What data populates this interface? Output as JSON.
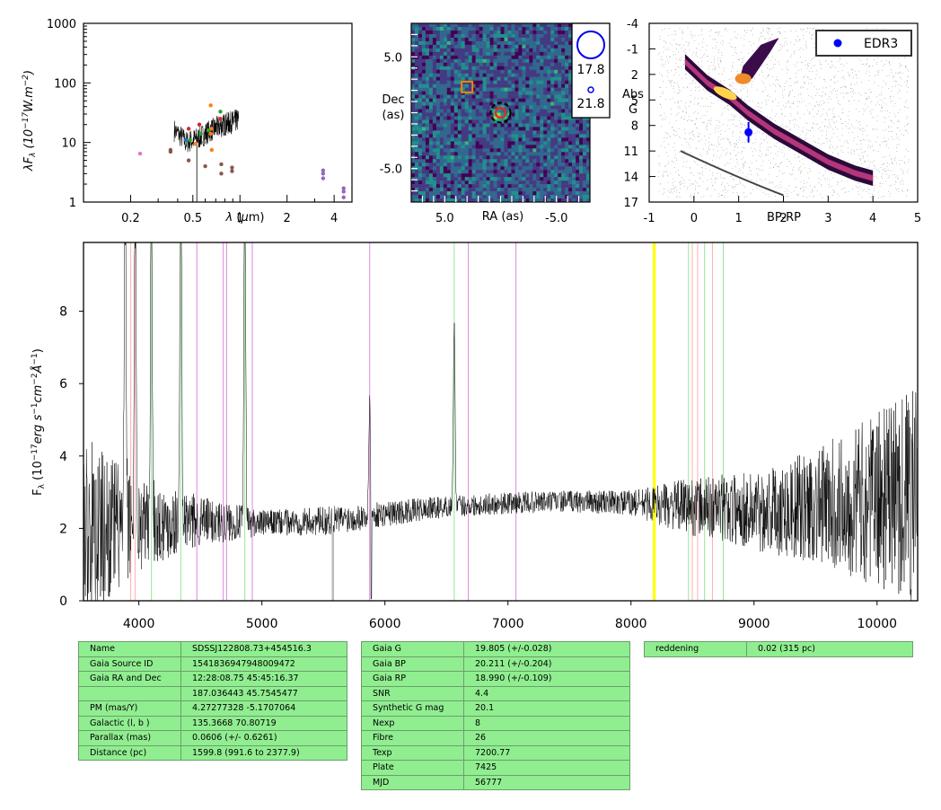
{
  "colors": {
    "spectrum": "#000000",
    "table_bg": "#90ee90",
    "line_red": "#ffb0b0",
    "line_green": "#99e699",
    "line_violet": "#dd88dd",
    "line_yellow": "#ffff00",
    "gaia_dot": "#0000ff",
    "marker_orange": "#ee8800"
  },
  "chart_data": [
    {
      "type": "scatter",
      "panel": "sed",
      "ylabel": "λF_λ (10⁻¹⁷W.m⁻²)",
      "xlabel": "λ (μm)",
      "xscale": "log",
      "yscale": "log",
      "xlim": [
        0.1,
        5.2
      ],
      "ylim": [
        1,
        1000
      ],
      "xticks": [
        "0.2",
        "0.5",
        "1",
        "2",
        "4"
      ],
      "x_tick_values": [
        0.2,
        0.5,
        1,
        2,
        4
      ],
      "yticks": [
        "1",
        "10",
        "100",
        "1000"
      ],
      "y_tick_values": [
        1,
        10,
        100,
        1000
      ],
      "points": [
        {
          "x": 0.23,
          "y": 6.5,
          "color": "#e377c2"
        },
        {
          "x": 0.36,
          "y": 7.5,
          "color": "#8c564b"
        },
        {
          "x": 0.36,
          "y": 7.0,
          "color": "#8c564b"
        },
        {
          "x": 0.45,
          "y": 11,
          "color": "#1f77b4"
        },
        {
          "x": 0.47,
          "y": 17,
          "color": "#d62728"
        },
        {
          "x": 0.47,
          "y": 5,
          "color": "#8c564b"
        },
        {
          "x": 0.48,
          "y": 11,
          "color": "#2ca02c"
        },
        {
          "x": 0.52,
          "y": 9.5,
          "color": "#ff7f0e"
        },
        {
          "x": 0.55,
          "y": 20,
          "color": "#d62728"
        },
        {
          "x": 0.56,
          "y": 14,
          "color": "#2ca02c"
        },
        {
          "x": 0.59,
          "y": 10,
          "color": "#7f7f7f"
        },
        {
          "x": 0.6,
          "y": 4,
          "color": "#8c564b"
        },
        {
          "x": 0.63,
          "y": 16,
          "color": "#2ca02c"
        },
        {
          "x": 0.65,
          "y": 42,
          "color": "#ff7f0e"
        },
        {
          "x": 0.65,
          "y": 14,
          "color": "#ff7f0e"
        },
        {
          "x": 0.66,
          "y": 17,
          "color": "#ff7f0e"
        },
        {
          "x": 0.66,
          "y": 7.5,
          "color": "#ff7f0e"
        },
        {
          "x": 0.75,
          "y": 33,
          "color": "#2ca02c"
        },
        {
          "x": 0.75,
          "y": 25,
          "color": "#d62728"
        },
        {
          "x": 0.76,
          "y": 4.3,
          "color": "#8c564b"
        },
        {
          "x": 0.76,
          "y": 3.0,
          "color": "#8c564b"
        },
        {
          "x": 0.89,
          "y": 3.8,
          "color": "#8c564b"
        },
        {
          "x": 0.89,
          "y": 3.3,
          "color": "#8c564b"
        },
        {
          "x": 3.4,
          "y": 3.4,
          "color": "#9467bd"
        },
        {
          "x": 3.4,
          "y": 3.0,
          "color": "#9467bd"
        },
        {
          "x": 3.4,
          "y": 2.5,
          "color": "#9467bd"
        },
        {
          "x": 4.6,
          "y": 1.7,
          "color": "#9467bd"
        },
        {
          "x": 4.6,
          "y": 1.5,
          "color": "#9467bd"
        },
        {
          "x": 4.6,
          "y": 1.2,
          "color": "#9467bd"
        }
      ]
    },
    {
      "type": "heatmap",
      "panel": "cutout",
      "xlabel": "RA (as)",
      "ylabel": "Dec\n(as)",
      "xlim": [
        8,
        -8
      ],
      "ylim": [
        -8,
        8
      ],
      "xticks": [
        "5.0",
        "-5.0"
      ],
      "x_tick_values": [
        5,
        -5
      ],
      "yticks": [
        "5.0",
        "-5.0"
      ],
      "y_tick_values": [
        5,
        -5
      ],
      "markers": [
        {
          "kind": "square",
          "ra": 3.0,
          "dec": 2.3,
          "color": "#ee8800"
        },
        {
          "kind": "dashed-circle",
          "ra": 0,
          "dec": 0,
          "color": "#000000"
        },
        {
          "kind": "circle",
          "ra": 0,
          "dec": 0,
          "color": "#ee2222"
        }
      ],
      "legend": {
        "placement": "right",
        "entries": [
          "17.8",
          "21.8"
        ]
      }
    },
    {
      "type": "scatter",
      "panel": "cmd",
      "xlabel": "BP-RP",
      "ylabel": "Abs\nG",
      "xlim": [
        -1,
        5
      ],
      "ylim": [
        17,
        -4
      ],
      "xticks": [
        "-1",
        "0",
        "1",
        "2",
        "3",
        "4",
        "5"
      ],
      "x_tick_values": [
        -1,
        0,
        1,
        2,
        3,
        4,
        5
      ],
      "yticks": [
        "-4",
        "-1",
        "2",
        "5",
        "8",
        "11",
        "14",
        "17"
      ],
      "y_tick_values": [
        -4,
        -1,
        2,
        5,
        8,
        11,
        14,
        17
      ],
      "legend": {
        "placement": "top-right",
        "entries": [
          "EDR3"
        ]
      },
      "target": {
        "name": "EDR3",
        "x": 1.22,
        "y": 8.8,
        "yerr": 1.2
      }
    },
    {
      "type": "line",
      "panel": "spectrum",
      "ylabel": "F_λ (10⁻¹⁷erg s⁻¹cm⁻²Å⁻¹)",
      "xlim": [
        3550,
        10330
      ],
      "ylim": [
        0,
        9.9
      ],
      "xticks": [
        "4000",
        "5000",
        "6000",
        "7000",
        "8000",
        "9000",
        "10000"
      ],
      "x_tick_values": [
        4000,
        5000,
        6000,
        7000,
        8000,
        9000,
        10000
      ],
      "yticks": [
        "0",
        "2",
        "4",
        "6",
        "8"
      ],
      "y_tick_values": [
        0,
        2,
        4,
        6,
        8
      ],
      "continuum": [
        [
          3600,
          2.0
        ],
        [
          4000,
          2.1
        ],
        [
          4500,
          2.2
        ],
        [
          5000,
          2.15
        ],
        [
          5500,
          2.2
        ],
        [
          6000,
          2.4
        ],
        [
          6500,
          2.6
        ],
        [
          7000,
          2.7
        ],
        [
          7500,
          2.75
        ],
        [
          8000,
          2.7
        ],
        [
          8500,
          2.6
        ],
        [
          9000,
          2.5
        ],
        [
          9500,
          2.6
        ],
        [
          10000,
          2.8
        ],
        [
          10300,
          3.0
        ]
      ],
      "noise": [
        [
          3600,
          2.5
        ],
        [
          4000,
          1.3
        ],
        [
          4500,
          0.7
        ],
        [
          5000,
          0.35
        ],
        [
          5500,
          0.4
        ],
        [
          6000,
          0.35
        ],
        [
          6500,
          0.3
        ],
        [
          7000,
          0.3
        ],
        [
          7500,
          0.3
        ],
        [
          8000,
          0.35
        ],
        [
          8500,
          0.8
        ],
        [
          9000,
          1.1
        ],
        [
          9500,
          1.6
        ],
        [
          10000,
          2.4
        ],
        [
          10330,
          3.2
        ]
      ],
      "emission": [
        [
          3889,
          9
        ],
        [
          3970,
          9
        ],
        [
          4102,
          10
        ],
        [
          4341,
          10
        ],
        [
          4861,
          10
        ],
        [
          5876,
          3.2
        ],
        [
          6563,
          5.0
        ]
      ],
      "absorption": [
        [
          5577,
          0.2
        ],
        [
          5890,
          0.05
        ]
      ],
      "lines": [
        {
          "x": 3934,
          "c": "red"
        },
        {
          "x": 3969,
          "c": "red"
        },
        {
          "x": 4102,
          "c": "green"
        },
        {
          "x": 4341,
          "c": "green"
        },
        {
          "x": 4471,
          "c": "violet"
        },
        {
          "x": 4686,
          "c": "violet"
        },
        {
          "x": 4713,
          "c": "violet"
        },
        {
          "x": 4861,
          "c": "green"
        },
        {
          "x": 4922,
          "c": "violet"
        },
        {
          "x": 5876,
          "c": "violet"
        },
        {
          "x": 6563,
          "c": "green"
        },
        {
          "x": 6678,
          "c": "violet"
        },
        {
          "x": 7065,
          "c": "violet"
        },
        {
          "x": 8183,
          "c": "yellow"
        },
        {
          "x": 8195,
          "c": "yellow"
        },
        {
          "x": 8498,
          "c": "red"
        },
        {
          "x": 8542,
          "c": "red"
        },
        {
          "x": 8662,
          "c": "red"
        },
        {
          "x": 8467,
          "c": "green"
        },
        {
          "x": 8598,
          "c": "green"
        },
        {
          "x": 8750,
          "c": "green"
        }
      ]
    }
  ],
  "tables": [
    {
      "rows": [
        [
          "Name",
          "SDSSJ122808.73+454516.3"
        ],
        [
          "Gaia Source ID",
          "1541836947948009472"
        ],
        [
          "Gaia RA and Dec",
          "12:28:08.75    45:45:16.37"
        ],
        [
          "",
          "187.036443    45.7545477"
        ],
        [
          "PM (mas/Y)",
          "4.27277328    -5.1707064"
        ],
        [
          "Galactic (l, b )",
          "135.3668    70.80719"
        ],
        [
          "Parallax (mas)",
          "0.0606 (+/- 0.6261)"
        ],
        [
          "Distance (pc)",
          "1599.8 (991.6 to 2377.9)"
        ]
      ]
    },
    {
      "rows": [
        [
          "Gaia G",
          "19.805 (+/-0.028)"
        ],
        [
          "Gaia BP",
          "20.211 (+/-0.204)"
        ],
        [
          "Gaia RP",
          "18.990 (+/-0.109)"
        ],
        [
          "SNR",
          "4.4"
        ],
        [
          "Synthetic G mag",
          "20.1"
        ],
        [
          "Nexp",
          "8"
        ],
        [
          "Fibre",
          "26"
        ],
        [
          "Texp",
          "7200.77"
        ],
        [
          "Plate",
          "7425"
        ],
        [
          "MJD",
          "56777"
        ]
      ]
    },
    {
      "rows": [
        [
          "reddening",
          "0.02 (315 pc)"
        ]
      ]
    }
  ]
}
